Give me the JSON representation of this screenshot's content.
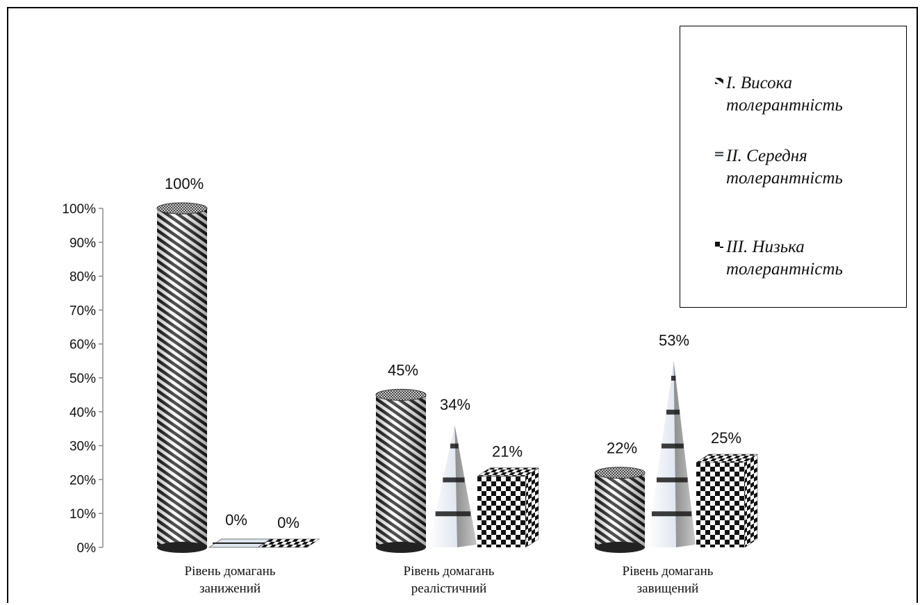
{
  "chart_data": {
    "type": "bar",
    "title": "",
    "xlabel": "",
    "ylabel": "",
    "ylim": [
      0,
      100
    ],
    "y_ticks": [
      "0%",
      "10%",
      "20%",
      "30%",
      "40%",
      "50%",
      "60%",
      "70%",
      "80%",
      "90%",
      "100%"
    ],
    "categories": [
      [
        "Рівень домагань",
        "занижений"
      ],
      [
        "Рівень домагань",
        "реалістичний"
      ],
      [
        "Рівень домагань",
        "завищений"
      ]
    ],
    "series": [
      {
        "name": "I. Висока толерантність",
        "legend_lines": [
          "I. Висока",
          "толерантність"
        ],
        "shape": "cylinder",
        "pattern": "diagonal-stripes",
        "values": [
          100,
          45,
          22
        ],
        "labels": [
          "100%",
          "45%",
          "22%"
        ]
      },
      {
        "name": "II. Середня толерантність",
        "legend_lines": [
          "II. Середня",
          "толерантність"
        ],
        "shape": "pyramid",
        "pattern": "horizontal-bands",
        "values": [
          0,
          34,
          53
        ],
        "labels": [
          "0%",
          "34%",
          "53%"
        ]
      },
      {
        "name": "III. Низька толерантність",
        "legend_lines": [
          "III. Низька",
          "толерантність"
        ],
        "shape": "box",
        "pattern": "checkerboard",
        "values": [
          0,
          21,
          25
        ],
        "labels": [
          "0%",
          "21%",
          "25%"
        ]
      }
    ],
    "legend_position": "top-right",
    "grid": false,
    "colors": {
      "ink": "#000000",
      "light": "#dfe6f0",
      "background": "#ffffff"
    }
  }
}
